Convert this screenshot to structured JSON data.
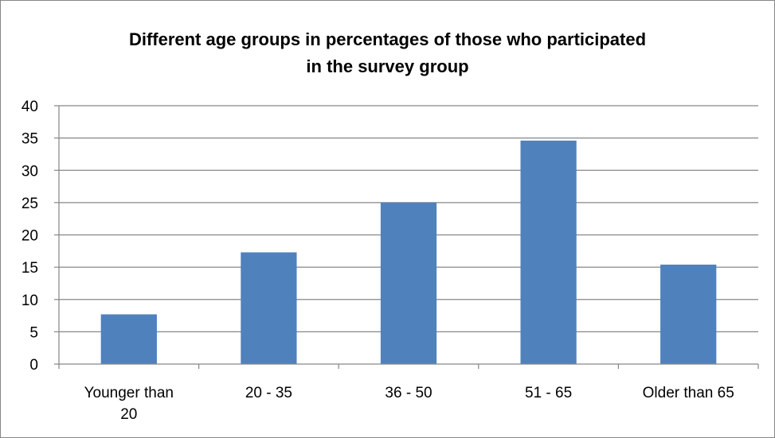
{
  "chart_data": {
    "type": "bar",
    "title_lines": [
      "Different age groups in percentages of those who participated",
      "in the survey group"
    ],
    "categories": [
      {
        "lines": [
          "Younger than",
          "20"
        ]
      },
      {
        "lines": [
          "20 - 35"
        ]
      },
      {
        "lines": [
          "36 - 50"
        ]
      },
      {
        "lines": [
          "51 - 65"
        ]
      },
      {
        "lines": [
          "Older than 65"
        ]
      }
    ],
    "values": [
      7.7,
      17.3,
      25.0,
      34.6,
      15.4
    ],
    "ylim": [
      0,
      40
    ],
    "ytick_step": 5,
    "yticks": [
      "0",
      "5",
      "10",
      "15",
      "20",
      "25",
      "30",
      "35",
      "40"
    ],
    "grid": true,
    "xlabel": "",
    "ylabel": "",
    "colors": {
      "bar": "#4F81BD",
      "grid": "#868686",
      "axis": "#868686"
    }
  }
}
